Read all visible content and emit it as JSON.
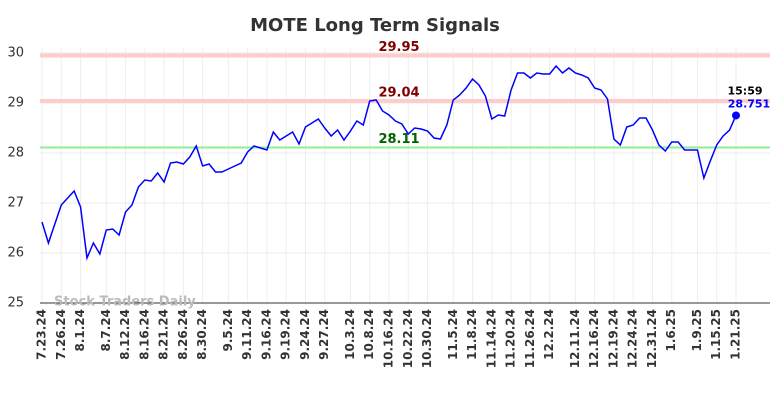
{
  "chart_data": {
    "type": "line",
    "title": "MOTE Long Term Signals",
    "categories": [
      "7.23.24",
      null,
      null,
      "7.26.24",
      null,
      null,
      "8.1.24",
      null,
      null,
      null,
      "8.7.24",
      null,
      null,
      "8.12.24",
      null,
      null,
      "8.16.24",
      null,
      null,
      "8.21.24",
      null,
      null,
      "8.26.24",
      null,
      null,
      "8.30.24",
      null,
      null,
      null,
      "9.5.24",
      null,
      null,
      "9.11.24",
      null,
      null,
      "9.16.24",
      null,
      null,
      "9.19.24",
      null,
      null,
      "9.24.24",
      null,
      null,
      "9.27.24",
      null,
      null,
      null,
      "10.3.24",
      null,
      null,
      "10.8.24",
      null,
      null,
      "10.16.24",
      null,
      null,
      "10.22.24",
      null,
      null,
      "10.30.24",
      null,
      null,
      null,
      "11.5.24",
      null,
      null,
      "11.8.24",
      null,
      null,
      "11.14.24",
      null,
      null,
      "11.20.24",
      null,
      null,
      "11.26.24",
      null,
      null,
      "12.2.24",
      null,
      null,
      null,
      "12.11.24",
      null,
      null,
      "12.16.24",
      null,
      null,
      "12.19.24",
      null,
      null,
      "12.24.24",
      null,
      null,
      "12.31.24",
      null,
      null,
      "1.6.25",
      null,
      null,
      null,
      "1.9.25",
      null,
      null,
      "1.15.25",
      null,
      null,
      "1.21.25"
    ],
    "series": [
      {
        "name": "MOTE",
        "color": "#0000ff",
        "values": [
          26.62,
          26.2,
          26.58,
          26.96,
          27.1,
          27.24,
          26.92,
          25.9,
          26.2,
          25.98,
          26.46,
          26.48,
          26.36,
          26.82,
          26.96,
          27.32,
          27.46,
          27.44,
          27.6,
          27.42,
          27.8,
          27.82,
          27.78,
          27.92,
          28.14,
          27.74,
          27.78,
          27.62,
          27.62,
          27.68,
          27.74,
          27.8,
          28.02,
          28.14,
          28.1,
          28.06,
          28.42,
          28.26,
          28.34,
          28.42,
          28.18,
          28.52,
          28.6,
          28.68,
          28.5,
          28.34,
          28.46,
          28.26,
          28.44,
          28.64,
          28.56,
          29.04,
          29.06,
          28.84,
          28.76,
          28.64,
          28.58,
          28.38,
          28.5,
          28.48,
          28.44,
          28.3,
          28.28,
          28.56,
          29.06,
          29.16,
          29.3,
          29.48,
          29.36,
          29.14,
          28.68,
          28.76,
          28.74,
          29.26,
          29.6,
          29.6,
          29.5,
          29.6,
          29.58,
          29.58,
          29.74,
          29.6,
          29.7,
          29.6,
          29.56,
          29.5,
          29.3,
          29.26,
          29.08,
          28.28,
          28.16,
          28.52,
          28.56,
          28.7,
          28.7,
          28.46,
          28.16,
          28.04,
          28.22,
          28.22,
          28.06,
          28.06,
          28.06,
          27.5,
          27.84,
          28.16,
          28.34,
          28.46,
          28.751
        ]
      }
    ],
    "ylim": [
      25,
      30
    ],
    "yticks": [
      25,
      26,
      27,
      28,
      29,
      30
    ],
    "grid": true,
    "hlines": [
      {
        "value": 29.95,
        "color": "#ffcccc",
        "text_color": "#800000"
      },
      {
        "value": 29.04,
        "color": "#ffcccc",
        "text_color": "#800000"
      },
      {
        "value": 28.11,
        "color": "#90ee90",
        "text_color": "#006400"
      }
    ],
    "last_time": "15:59",
    "watermark": "Stock Traders Daily"
  }
}
